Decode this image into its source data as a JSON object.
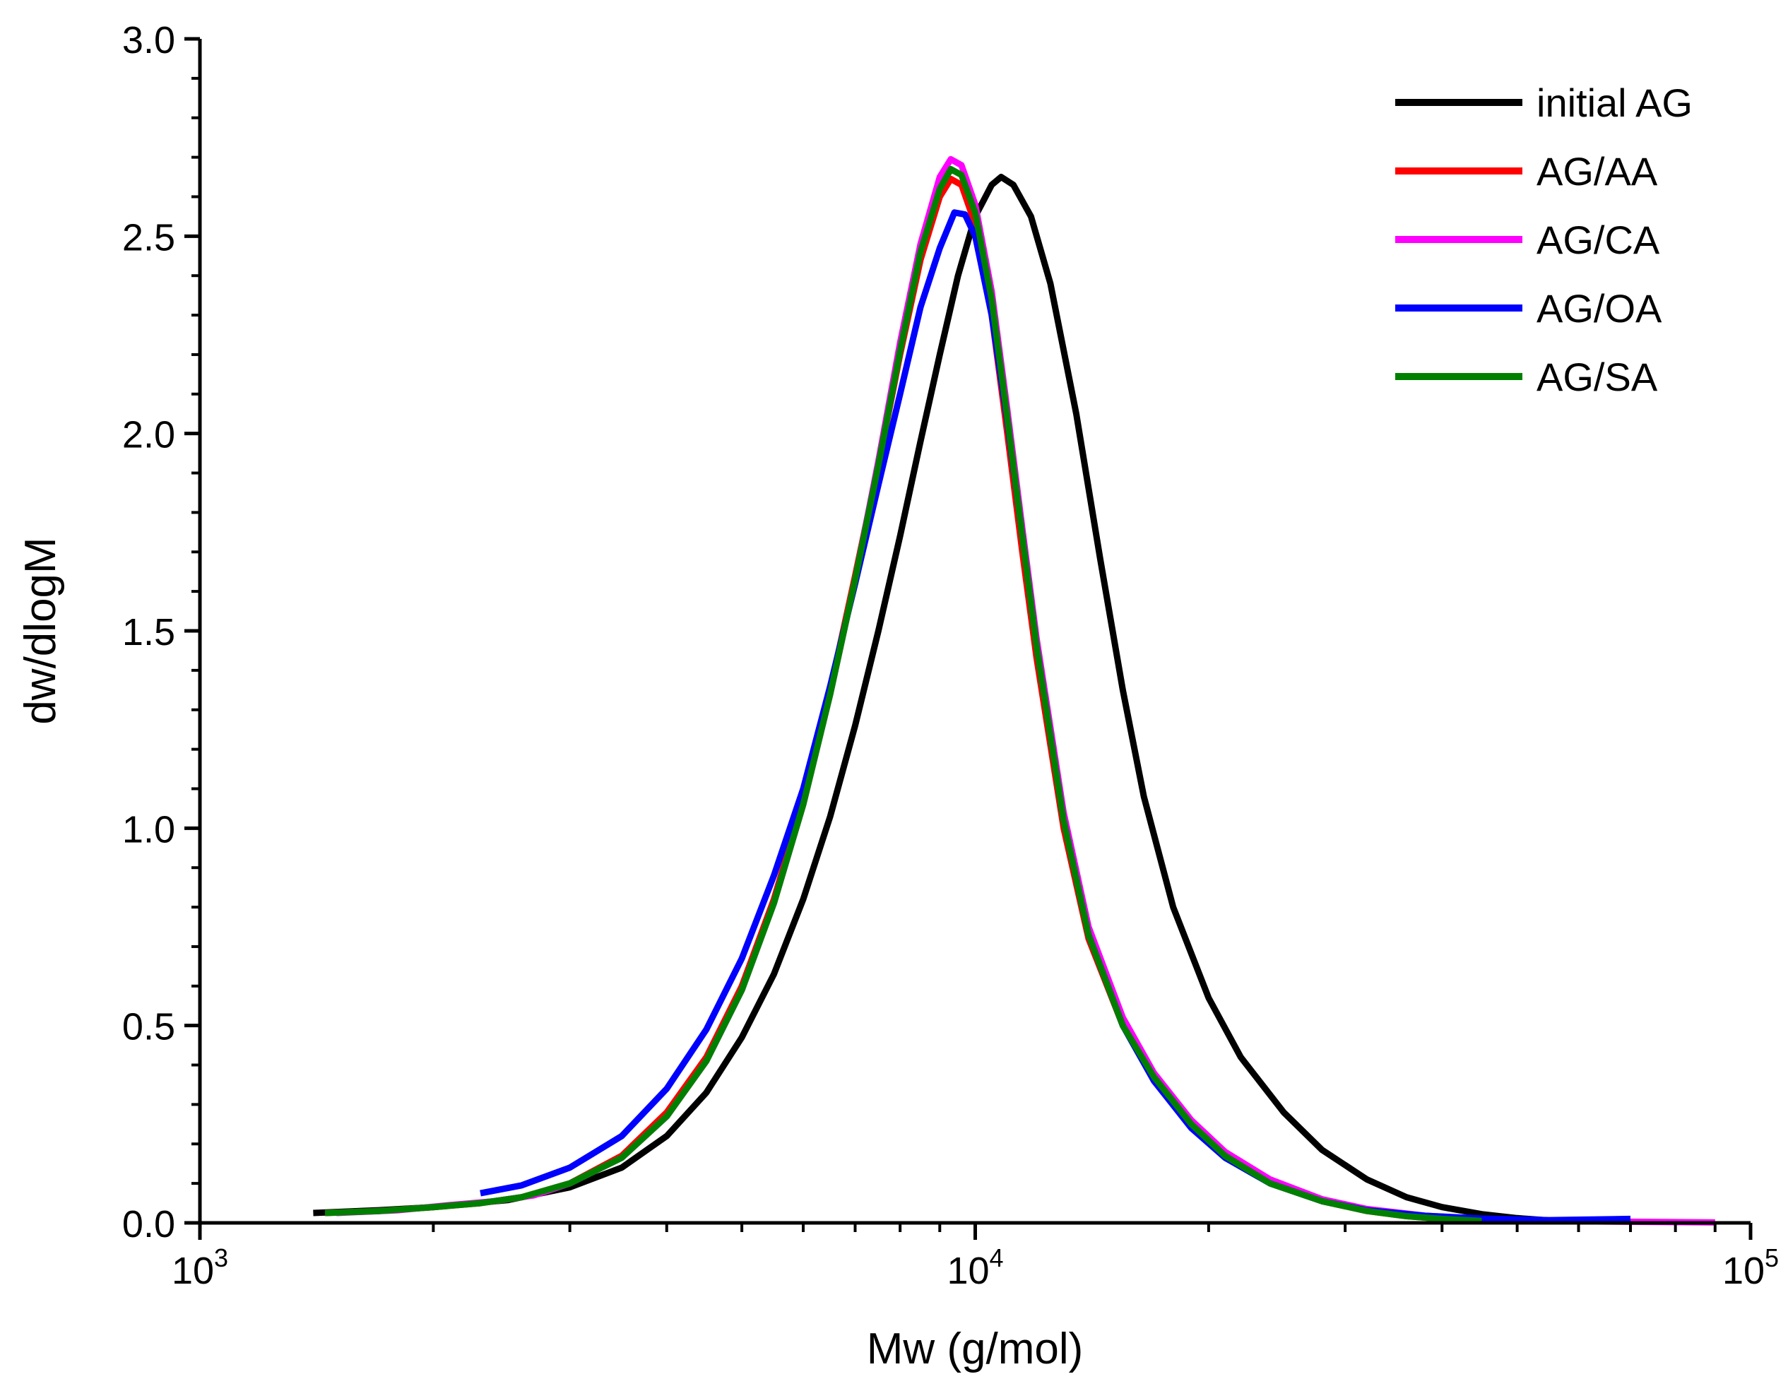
{
  "chart_data": {
    "type": "line",
    "title": "",
    "xlabel": "Mw (g/mol)",
    "ylabel": "dw/dlogM",
    "xscale": "log",
    "xlim": [
      1000,
      100000
    ],
    "ylim": [
      0,
      3.0
    ],
    "x_ticks": [
      {
        "value": 1000,
        "base": "10",
        "exp": "3"
      },
      {
        "value": 10000,
        "base": "10",
        "exp": "4"
      },
      {
        "value": 100000,
        "base": "10",
        "exp": "5"
      }
    ],
    "y_ticks": [
      {
        "value": 0.0,
        "label": "0.0"
      },
      {
        "value": 0.5,
        "label": "0.5"
      },
      {
        "value": 1.0,
        "label": "1.0"
      },
      {
        "value": 1.5,
        "label": "1.5"
      },
      {
        "value": 2.0,
        "label": "2.0"
      },
      {
        "value": 2.5,
        "label": "2.5"
      },
      {
        "value": 3.0,
        "label": "3.0"
      }
    ],
    "legend_position": "top-right",
    "series": [
      {
        "name": "initial AG",
        "color": "#000000",
        "points": [
          [
            1400,
            0.025
          ],
          [
            1700,
            0.032
          ],
          [
            2000,
            0.04
          ],
          [
            2500,
            0.058
          ],
          [
            3000,
            0.09
          ],
          [
            3500,
            0.14
          ],
          [
            4000,
            0.22
          ],
          [
            4500,
            0.33
          ],
          [
            5000,
            0.47
          ],
          [
            5500,
            0.63
          ],
          [
            6000,
            0.82
          ],
          [
            6500,
            1.03
          ],
          [
            7000,
            1.26
          ],
          [
            7500,
            1.5
          ],
          [
            8000,
            1.74
          ],
          [
            8500,
            1.98
          ],
          [
            9000,
            2.2
          ],
          [
            9500,
            2.4
          ],
          [
            10000,
            2.55
          ],
          [
            10500,
            2.63
          ],
          [
            10800,
            2.65
          ],
          [
            11200,
            2.63
          ],
          [
            11800,
            2.55
          ],
          [
            12500,
            2.38
          ],
          [
            13500,
            2.05
          ],
          [
            14500,
            1.68
          ],
          [
            15500,
            1.35
          ],
          [
            16500,
            1.08
          ],
          [
            18000,
            0.8
          ],
          [
            20000,
            0.57
          ],
          [
            22000,
            0.42
          ],
          [
            25000,
            0.28
          ],
          [
            28000,
            0.185
          ],
          [
            32000,
            0.11
          ],
          [
            36000,
            0.065
          ],
          [
            40000,
            0.04
          ],
          [
            45000,
            0.022
          ],
          [
            50000,
            0.012
          ],
          [
            55000,
            0.006
          ]
        ]
      },
      {
        "name": "AG/AA",
        "color": "#ff0000",
        "points": [
          [
            1450,
            0.025
          ],
          [
            1700,
            0.03
          ],
          [
            2000,
            0.04
          ],
          [
            2300,
            0.05
          ],
          [
            2600,
            0.065
          ],
          [
            3000,
            0.1
          ],
          [
            3500,
            0.17
          ],
          [
            4000,
            0.28
          ],
          [
            4500,
            0.42
          ],
          [
            5000,
            0.6
          ],
          [
            5500,
            0.82
          ],
          [
            6000,
            1.07
          ],
          [
            6500,
            1.35
          ],
          [
            7000,
            1.64
          ],
          [
            7500,
            1.92
          ],
          [
            8000,
            2.2
          ],
          [
            8500,
            2.44
          ],
          [
            9000,
            2.6
          ],
          [
            9300,
            2.645
          ],
          [
            9600,
            2.63
          ],
          [
            10000,
            2.53
          ],
          [
            10500,
            2.3
          ],
          [
            11000,
            2.0
          ],
          [
            11500,
            1.7
          ],
          [
            12000,
            1.43
          ],
          [
            13000,
            1.0
          ],
          [
            14000,
            0.72
          ],
          [
            15500,
            0.5
          ],
          [
            17000,
            0.37
          ],
          [
            19000,
            0.25
          ],
          [
            21000,
            0.17
          ],
          [
            24000,
            0.1
          ],
          [
            28000,
            0.055
          ],
          [
            32000,
            0.03
          ],
          [
            36000,
            0.017
          ],
          [
            40000,
            0.01
          ],
          [
            45000,
            0.005
          ]
        ]
      },
      {
        "name": "AG/CA",
        "color": "#ff00ff",
        "points": [
          [
            1500,
            0.025
          ],
          [
            1800,
            0.032
          ],
          [
            2100,
            0.045
          ],
          [
            2400,
            0.055
          ],
          [
            2700,
            0.07
          ],
          [
            3000,
            0.1
          ],
          [
            3500,
            0.165
          ],
          [
            4000,
            0.27
          ],
          [
            4500,
            0.41
          ],
          [
            5000,
            0.59
          ],
          [
            5500,
            0.81
          ],
          [
            6000,
            1.06
          ],
          [
            6500,
            1.34
          ],
          [
            7000,
            1.63
          ],
          [
            7500,
            1.93
          ],
          [
            8000,
            2.23
          ],
          [
            8500,
            2.48
          ],
          [
            9000,
            2.65
          ],
          [
            9300,
            2.695
          ],
          [
            9600,
            2.68
          ],
          [
            10000,
            2.58
          ],
          [
            10500,
            2.36
          ],
          [
            11000,
            2.06
          ],
          [
            11500,
            1.76
          ],
          [
            12000,
            1.48
          ],
          [
            13000,
            1.04
          ],
          [
            14000,
            0.75
          ],
          [
            15500,
            0.52
          ],
          [
            17000,
            0.38
          ],
          [
            19000,
            0.26
          ],
          [
            21000,
            0.18
          ],
          [
            24000,
            0.11
          ],
          [
            28000,
            0.06
          ],
          [
            32000,
            0.035
          ],
          [
            38000,
            0.018
          ],
          [
            45000,
            0.01
          ],
          [
            60000,
            0.004
          ],
          [
            90000,
            0.001
          ]
        ]
      },
      {
        "name": "AG/OA",
        "color": "#0000ff",
        "points": [
          [
            2300,
            0.075
          ],
          [
            2600,
            0.095
          ],
          [
            3000,
            0.14
          ],
          [
            3500,
            0.22
          ],
          [
            4000,
            0.34
          ],
          [
            4500,
            0.49
          ],
          [
            5000,
            0.67
          ],
          [
            5500,
            0.88
          ],
          [
            6000,
            1.1
          ],
          [
            6500,
            1.36
          ],
          [
            7000,
            1.62
          ],
          [
            7500,
            1.87
          ],
          [
            8000,
            2.1
          ],
          [
            8500,
            2.32
          ],
          [
            9000,
            2.47
          ],
          [
            9400,
            2.56
          ],
          [
            9700,
            2.555
          ],
          [
            10000,
            2.5
          ],
          [
            10500,
            2.3
          ],
          [
            11000,
            2.03
          ],
          [
            11500,
            1.74
          ],
          [
            12000,
            1.46
          ],
          [
            13000,
            1.02
          ],
          [
            14000,
            0.73
          ],
          [
            15500,
            0.5
          ],
          [
            17000,
            0.36
          ],
          [
            19000,
            0.24
          ],
          [
            21000,
            0.165
          ],
          [
            24000,
            0.1
          ],
          [
            28000,
            0.055
          ],
          [
            32000,
            0.032
          ],
          [
            38000,
            0.018
          ],
          [
            45000,
            0.011
          ],
          [
            55000,
            0.007
          ],
          [
            70000,
            0.01
          ]
        ]
      },
      {
        "name": "AG/SA",
        "color": "#008000",
        "points": [
          [
            1450,
            0.025
          ],
          [
            1700,
            0.03
          ],
          [
            2000,
            0.04
          ],
          [
            2300,
            0.05
          ],
          [
            2600,
            0.065
          ],
          [
            3000,
            0.1
          ],
          [
            3500,
            0.165
          ],
          [
            4000,
            0.27
          ],
          [
            4500,
            0.41
          ],
          [
            5000,
            0.59
          ],
          [
            5500,
            0.81
          ],
          [
            6000,
            1.06
          ],
          [
            6500,
            1.34
          ],
          [
            7000,
            1.63
          ],
          [
            7500,
            1.92
          ],
          [
            8000,
            2.21
          ],
          [
            8500,
            2.46
          ],
          [
            9000,
            2.62
          ],
          [
            9300,
            2.67
          ],
          [
            9600,
            2.655
          ],
          [
            10000,
            2.56
          ],
          [
            10500,
            2.34
          ],
          [
            11000,
            2.04
          ],
          [
            11500,
            1.74
          ],
          [
            12000,
            1.46
          ],
          [
            13000,
            1.02
          ],
          [
            14000,
            0.73
          ],
          [
            15500,
            0.5
          ],
          [
            17000,
            0.37
          ],
          [
            19000,
            0.25
          ],
          [
            21000,
            0.17
          ],
          [
            24000,
            0.1
          ],
          [
            28000,
            0.055
          ],
          [
            32000,
            0.03
          ],
          [
            36000,
            0.017
          ],
          [
            40000,
            0.01
          ],
          [
            45000,
            0.005
          ]
        ]
      }
    ]
  }
}
